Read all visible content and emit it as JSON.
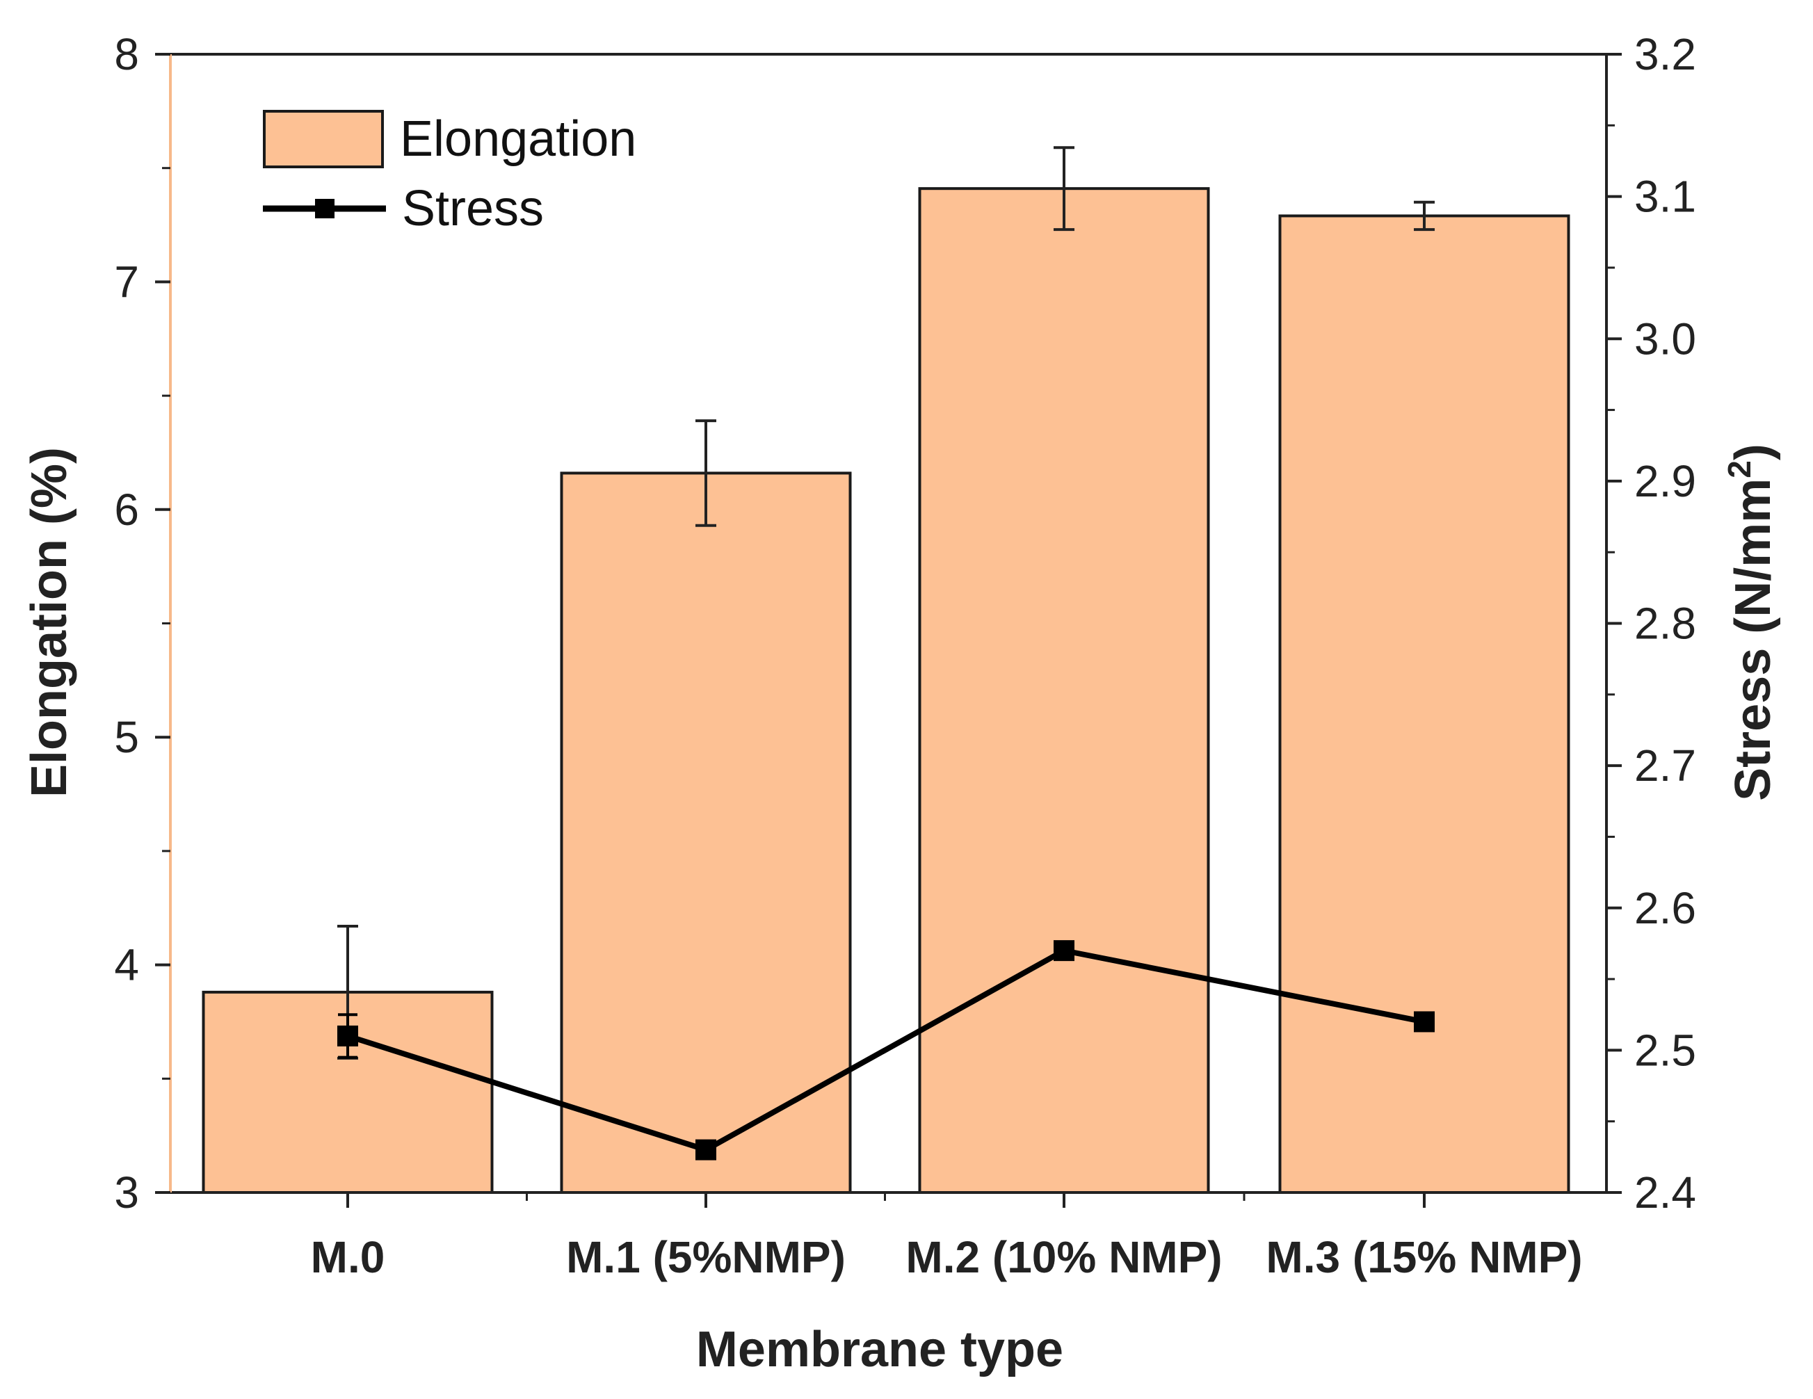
{
  "chart_data": {
    "type": "bar",
    "title": "",
    "xlabel": "Membrane type",
    "ylabel": "Elongation (%)",
    "y2label_main": "Stress (N/mm",
    "y2label_sup": "2",
    "y2label_close": ")",
    "categories": [
      "M.0",
      "M.1 (5%NMP)",
      "M.2 (10% NMP)",
      "M.3 (15% NMP)"
    ],
    "ylim": [
      3,
      8
    ],
    "y2lim": [
      2.4,
      3.2
    ],
    "yticks": [
      "3",
      "4",
      "5",
      "6",
      "7",
      "8"
    ],
    "y2ticks": [
      "2.4",
      "2.5",
      "2.6",
      "2.7",
      "2.8",
      "2.9",
      "3.0",
      "3.1",
      "3.2"
    ],
    "series": [
      {
        "name": "Elongation",
        "type": "bar",
        "axis": "left",
        "values": [
          3.88,
          6.16,
          7.41,
          7.29
        ],
        "errors": [
          0.29,
          0.23,
          0.18,
          0.06
        ]
      },
      {
        "name": "Stress",
        "type": "line",
        "axis": "right",
        "values": [
          2.51,
          2.43,
          2.57,
          2.52
        ],
        "errors": [
          0.015,
          0.0,
          0.0,
          0.0
        ]
      }
    ],
    "legend": [
      "Elongation",
      "Stress"
    ],
    "legend_position": "top-left",
    "colors": {
      "bar_fill": "#FDC194",
      "bar_stroke": "#1a1a1a",
      "line": "#000000",
      "left_axis": "#F7B98A"
    }
  }
}
